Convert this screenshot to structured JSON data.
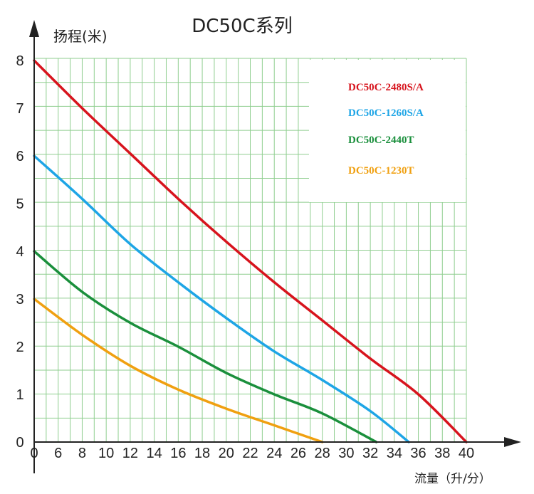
{
  "chart_data": {
    "type": "line",
    "title": "DC50C系列",
    "ylabel": "扬程(米)",
    "xlabel": "流量（升/分）",
    "xlim": [
      4,
      40
    ],
    "ylim": [
      0,
      8
    ],
    "x_tick_labels": [
      "0",
      "6",
      "8",
      "10",
      "12",
      "14",
      "16",
      "18",
      "20",
      "22",
      "24",
      "26",
      "28",
      "30",
      "32",
      "34",
      "36",
      "38",
      "40"
    ],
    "y_tick_labels": [
      "0",
      "1",
      "2",
      "3",
      "4",
      "5",
      "6",
      "7",
      "8"
    ],
    "grid": true,
    "legend_position": "top-right",
    "series": [
      {
        "name": "DC50C-2480S/A",
        "color": "#d7141d",
        "points": [
          [
            4,
            8
          ],
          [
            8,
            7
          ],
          [
            12,
            6.05
          ],
          [
            16,
            5.1
          ],
          [
            20,
            4.2
          ],
          [
            24,
            3.35
          ],
          [
            28,
            2.55
          ],
          [
            32,
            1.75
          ],
          [
            36,
            1.0
          ],
          [
            40,
            0
          ]
        ]
      },
      {
        "name": "DC50C-1260S/A",
        "color": "#1ea5e6",
        "points": [
          [
            4,
            6
          ],
          [
            8,
            5.1
          ],
          [
            12,
            4.15
          ],
          [
            16,
            3.35
          ],
          [
            20,
            2.6
          ],
          [
            24,
            1.9
          ],
          [
            28,
            1.3
          ],
          [
            32,
            0.65
          ],
          [
            35.2,
            0
          ]
        ]
      },
      {
        "name": "DC50C-2440T",
        "color": "#1a8f3c",
        "points": [
          [
            4,
            4
          ],
          [
            8,
            3.15
          ],
          [
            12,
            2.5
          ],
          [
            16,
            2.0
          ],
          [
            20,
            1.45
          ],
          [
            24,
            1.0
          ],
          [
            28,
            0.6
          ],
          [
            32.5,
            0
          ]
        ]
      },
      {
        "name": "DC50C-1230T",
        "color": "#f0a010",
        "points": [
          [
            4,
            3
          ],
          [
            8,
            2.25
          ],
          [
            12,
            1.6
          ],
          [
            16,
            1.1
          ],
          [
            20,
            0.7
          ],
          [
            24,
            0.35
          ],
          [
            28,
            0
          ]
        ]
      }
    ]
  }
}
